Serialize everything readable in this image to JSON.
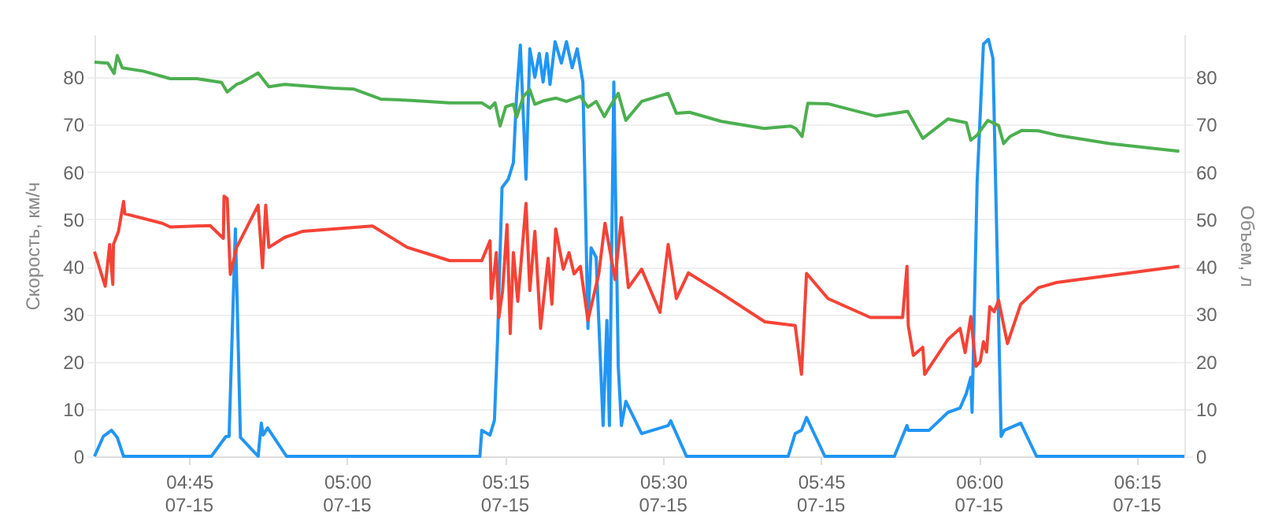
{
  "chart_data": {
    "type": "line",
    "ylabel": "Скорость, км/ч",
    "y2label": "Объем, л",
    "xlim": [
      4.6,
      6.325
    ],
    "xticks": [
      {
        "value": 4.75,
        "label": "04:45"
      },
      {
        "value": 5,
        "label": "05:00"
      },
      {
        "value": 5.25,
        "label": "05:15"
      },
      {
        "value": 5.5,
        "label": "05:30"
      },
      {
        "value": 5.75,
        "label": "05:45"
      },
      {
        "value": 6,
        "label": "06:00"
      },
      {
        "value": 6.25,
        "label": "06:15"
      }
    ],
    "annotations": [
      "07-15",
      "07-15",
      "07-15",
      "07-15",
      "07-15",
      "07-15",
      "07-15"
    ],
    "ylim": [
      0,
      89
    ],
    "yticks": [
      0,
      10,
      20,
      30,
      40,
      50,
      60,
      70,
      80
    ],
    "y2lim": [
      0,
      89
    ],
    "y2ticks": [
      0,
      10,
      20,
      30,
      40,
      50,
      60,
      70,
      80
    ],
    "grid": "y",
    "series": [
      {
        "color": "#2196f3",
        "x": [
          4.6,
          4.614,
          4.627,
          4.636,
          4.646,
          4.785,
          4.808,
          4.813,
          4.823,
          4.831,
          4.859,
          4.864,
          4.867,
          4.874,
          4.904,
          5.21,
          5.213,
          5.226,
          5.233,
          5.238,
          5.245,
          5.255,
          5.263,
          5.268,
          5.274,
          5.283,
          5.289,
          5.297,
          5.304,
          5.31,
          5.316,
          5.321,
          5.329,
          5.339,
          5.347,
          5.356,
          5.364,
          5.373,
          5.381,
          5.386,
          5.394,
          5.405,
          5.411,
          5.415,
          5.422,
          5.429,
          5.434,
          5.441,
          5.466,
          5.508,
          5.512,
          5.537,
          5.698,
          5.709,
          5.719,
          5.727,
          5.756,
          5.866,
          5.886,
          5.888,
          5.921,
          5.951,
          5.97,
          5.98,
          5.987,
          5.989,
          5.997,
          6.007,
          6.015,
          6.022,
          6.035,
          6.04,
          6.066,
          6.091,
          6.325
        ],
        "values": [
          0,
          4.2,
          5.5,
          4,
          0,
          0,
          4.2,
          4.2,
          48,
          4,
          0,
          7,
          4.5,
          6,
          0,
          0,
          5.5,
          4.5,
          7.6,
          24.7,
          56.7,
          58.5,
          62,
          76,
          86.8,
          58.5,
          86,
          80,
          85,
          79,
          85,
          78.5,
          87.5,
          83,
          87.5,
          82,
          86,
          79,
          27,
          44,
          42,
          6.5,
          28.7,
          6.5,
          79,
          19,
          6.5,
          11.6,
          4.8,
          6.5,
          7.5,
          0,
          0,
          4.8,
          5.5,
          8.2,
          0,
          0,
          6.5,
          5.5,
          5.5,
          9.3,
          10.2,
          13.3,
          16.7,
          9.3,
          57.8,
          87,
          88,
          84,
          4.2,
          5.5,
          7,
          0,
          0
        ]
      },
      {
        "color": "#4caf50",
        "axis": "y2",
        "x": [
          4.6,
          4.621,
          4.631,
          4.636,
          4.644,
          4.677,
          4.72,
          4.762,
          4.801,
          4.81,
          4.825,
          4.833,
          4.859,
          4.876,
          4.901,
          4.977,
          5.011,
          5.053,
          5.103,
          5.162,
          5.213,
          5.226,
          5.234,
          5.242,
          5.251,
          5.263,
          5.268,
          5.279,
          5.289,
          5.297,
          5.31,
          5.33,
          5.347,
          5.369,
          5.381,
          5.394,
          5.407,
          5.415,
          5.429,
          5.441,
          5.466,
          5.508,
          5.521,
          5.542,
          5.592,
          5.66,
          5.702,
          5.71,
          5.72,
          5.729,
          5.761,
          5.837,
          5.887,
          5.911,
          5.951,
          5.98,
          5.987,
          5.997,
          6.014,
          6.031,
          6.039,
          6.049,
          6.068,
          6.094,
          6.123,
          6.207,
          6.317
        ],
        "values": [
          83.2,
          83,
          80.8,
          84.6,
          82,
          81.3,
          79.7,
          79.7,
          78.9,
          76.9,
          78.5,
          78.9,
          80.9,
          78,
          78.5,
          77.7,
          77.5,
          75.4,
          75.1,
          74.6,
          74.6,
          73.5,
          74.6,
          69.7,
          73.8,
          74.3,
          71.5,
          76,
          77.4,
          74.3,
          75,
          75.6,
          74.9,
          76,
          73.7,
          74.9,
          71.7,
          73.6,
          76.6,
          70.9,
          74.9,
          76.6,
          72.4,
          72.6,
          70.7,
          69.2,
          69.7,
          69.2,
          67.5,
          74.5,
          74.4,
          71.8,
          72.8,
          67.1,
          71.2,
          70.4,
          66.7,
          67.8,
          70.9,
          69.8,
          66,
          67.5,
          68.8,
          68.7,
          67.8,
          66,
          64.4
        ]
      },
      {
        "color": "#f44336",
        "axis": "y2",
        "x": [
          4.6,
          4.617,
          4.624,
          4.629,
          4.63,
          4.638,
          4.646,
          4.648,
          4.707,
          4.72,
          4.783,
          4.804,
          4.805,
          4.81,
          4.815,
          4.825,
          4.859,
          4.866,
          4.871,
          4.876,
          4.901,
          4.93,
          5.04,
          5.095,
          5.162,
          5.213,
          5.226,
          5.228,
          5.236,
          5.24,
          5.246,
          5.253,
          5.258,
          5.263,
          5.27,
          5.283,
          5.289,
          5.297,
          5.306,
          5.318,
          5.324,
          5.33,
          5.342,
          5.351,
          5.359,
          5.369,
          5.381,
          5.398,
          5.408,
          5.424,
          5.434,
          5.445,
          5.466,
          5.495,
          5.508,
          5.521,
          5.54,
          5.592,
          5.661,
          5.709,
          5.719,
          5.727,
          5.761,
          5.828,
          5.879,
          5.886,
          5.888,
          5.896,
          5.911,
          5.914,
          5.951,
          5.97,
          5.978,
          5.987,
          5.995,
          6.002,
          6.007,
          6.012,
          6.017,
          6.024,
          6.031,
          6.045,
          6.066,
          6.094,
          6.123,
          6.317
        ],
        "values": [
          43.2,
          35.9,
          44.7,
          36.3,
          44.7,
          47.5,
          53.8,
          51.2,
          49.2,
          48.4,
          48.7,
          46,
          54.9,
          54.4,
          38.4,
          44.1,
          53,
          39.8,
          53,
          44.1,
          46.2,
          47.5,
          48.6,
          44.1,
          41.3,
          41.3,
          45.5,
          33.3,
          43,
          29.3,
          35,
          48.9,
          25.9,
          43,
          32.7,
          53.4,
          35,
          47.5,
          27,
          41.8,
          32.1,
          48,
          39.5,
          43,
          38.5,
          40.1,
          28.7,
          38.4,
          49.2,
          37.3,
          50.4,
          35.6,
          39.5,
          30.4,
          44.7,
          33.3,
          38.7,
          34.4,
          28.4,
          27.6,
          17.3,
          38.6,
          33.3,
          29.3,
          29.3,
          40.1,
          27.6,
          21.3,
          23,
          17.3,
          24.7,
          27,
          21.9,
          29.5,
          19,
          20,
          24.2,
          22,
          31.6,
          30.5,
          32.9,
          23.8,
          32.1,
          35.6,
          36.7,
          40.1
        ]
      }
    ]
  }
}
